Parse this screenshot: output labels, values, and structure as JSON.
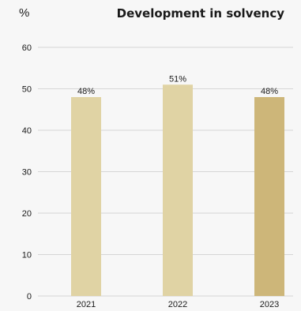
{
  "chart_data": {
    "type": "bar",
    "title": "Development in solvency",
    "ylabel": "%",
    "xlabel": "",
    "categories": [
      "2021",
      "2022",
      "2023"
    ],
    "values": [
      48,
      51,
      48
    ],
    "value_labels": [
      "48%",
      "51%",
      "48%"
    ],
    "ylim": [
      0,
      60
    ],
    "yticks": [
      0,
      10,
      20,
      30,
      40,
      50,
      60
    ],
    "grid": true,
    "colors": {
      "bar": "#e0d3a4",
      "bar_highlight": "#cdb679",
      "grid": "#d6d6d6",
      "text": "#1a1a1a",
      "background": "#f7f7f7"
    },
    "highlight_index": 2
  }
}
